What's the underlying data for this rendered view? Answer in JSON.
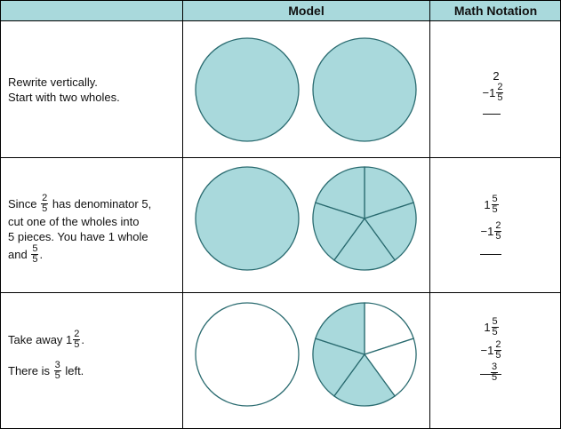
{
  "header": {
    "col1": "",
    "col2": "Model",
    "col3": "Math Notation"
  },
  "colors": {
    "header_bg": "#a9d9dc",
    "fill": "#a9d9dc",
    "stroke": "#2a6b70"
  },
  "rows": [
    {
      "line1": "Rewrite vertically.",
      "line2": "Start with two wholes.",
      "notation": {
        "top": "2",
        "minus_whole": "−1",
        "minus_num": "2",
        "minus_den": "5"
      }
    },
    {
      "since": "Since",
      "frac_num": "2",
      "frac_den": "5",
      "after_frac": "has denominator 5,",
      "line2": "cut one of the wholes into",
      "line3": "5 pieces. You have 1 whole",
      "and": "and",
      "and_num": "5",
      "and_den": "5",
      "period": ".",
      "notation": {
        "top_whole": "1",
        "top_num": "5",
        "top_den": "5",
        "minus_whole": "−1",
        "minus_num": "2",
        "minus_den": "5"
      }
    },
    {
      "take": "Take away 1",
      "take_num": "2",
      "take_den": "5",
      "take_period": ".",
      "there": "There is",
      "there_num": "3",
      "there_den": "5",
      "left": "left.",
      "notation": {
        "top_whole": "1",
        "top_num": "5",
        "top_den": "5",
        "minus_whole": "−1",
        "minus_num": "2",
        "minus_den": "5",
        "res_num": "3",
        "res_den": "5"
      }
    }
  ]
}
